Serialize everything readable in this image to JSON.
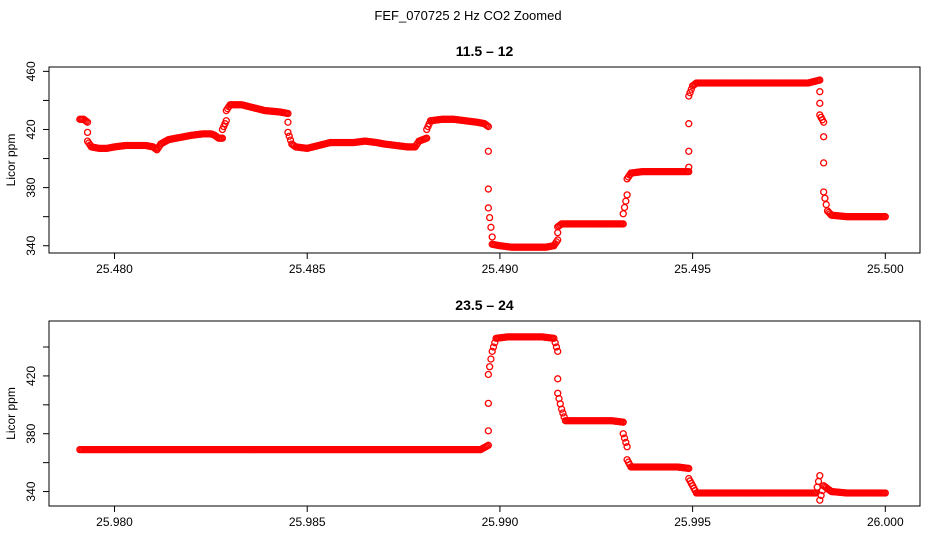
{
  "figure": {
    "suptitle": "FEF_070725  2 Hz CO2 Zoomed"
  },
  "chart_data": [
    {
      "type": "scatter",
      "title": "11.5 – 12",
      "xlabel": "",
      "ylabel": "Licor ppm",
      "xlim": [
        25.4783,
        25.5009
      ],
      "ylim": [
        335,
        463
      ],
      "xticks": [
        25.48,
        25.485,
        25.49,
        25.495,
        25.5
      ],
      "xtick_labels": [
        "25.480",
        "25.485",
        "25.490",
        "25.495",
        "25.500"
      ],
      "yticks": [
        340,
        360,
        380,
        400,
        420,
        440,
        460
      ],
      "ytick_labels": [
        "340",
        "",
        "380",
        "",
        "420",
        "",
        "460"
      ],
      "marker_color": "#ff0000",
      "series": [
        {
          "points": [
            [
              25.4791,
              427
            ],
            [
              25.4792,
              427
            ],
            [
              25.4793,
              425
            ],
            [
              25.4793,
              418
            ],
            [
              25.4793,
              412
            ],
            [
              25.4794,
              408
            ],
            [
              25.4796,
              407
            ],
            [
              25.4798,
              407
            ],
            [
              25.48,
              408
            ],
            [
              25.4803,
              409
            ],
            [
              25.4806,
              409
            ],
            [
              25.4808,
              409
            ],
            [
              25.481,
              408
            ],
            [
              25.4811,
              406
            ],
            [
              25.4812,
              410
            ],
            [
              25.4814,
              413
            ],
            [
              25.4816,
              414
            ],
            [
              25.4818,
              415
            ],
            [
              25.482,
              416
            ],
            [
              25.4823,
              417
            ],
            [
              25.4825,
              417
            ],
            [
              25.4826,
              416
            ],
            [
              25.4827,
              414
            ],
            [
              25.4828,
              414
            ],
            [
              25.4828,
              420
            ],
            [
              25.4829,
              426
            ],
            [
              25.4829,
              433
            ],
            [
              25.483,
              437
            ],
            [
              25.4833,
              437
            ],
            [
              25.4836,
              435
            ],
            [
              25.4839,
              433
            ],
            [
              25.4843,
              432
            ],
            [
              25.4845,
              431
            ],
            [
              25.4845,
              425
            ],
            [
              25.4845,
              418
            ],
            [
              25.4846,
              410
            ],
            [
              25.4847,
              408
            ],
            [
              25.485,
              407
            ],
            [
              25.4853,
              409
            ],
            [
              25.4856,
              411
            ],
            [
              25.4859,
              411
            ],
            [
              25.4862,
              411
            ],
            [
              25.4865,
              412
            ],
            [
              25.4868,
              411
            ],
            [
              25.487,
              410
            ],
            [
              25.4873,
              409
            ],
            [
              25.4876,
              408
            ],
            [
              25.4878,
              408
            ],
            [
              25.4879,
              412
            ],
            [
              25.4881,
              414
            ],
            [
              25.4881,
              420
            ],
            [
              25.4882,
              426
            ],
            [
              25.4885,
              427
            ],
            [
              25.4888,
              427
            ],
            [
              25.4891,
              426
            ],
            [
              25.4894,
              425
            ],
            [
              25.4896,
              424
            ],
            [
              25.4897,
              422
            ],
            [
              25.4897,
              405
            ],
            [
              25.4897,
              379
            ],
            [
              25.4897,
              366
            ],
            [
              25.4898,
              346
            ],
            [
              25.4898,
              341
            ],
            [
              25.49,
              340
            ],
            [
              25.4903,
              339
            ],
            [
              25.4906,
              339
            ],
            [
              25.4909,
              339
            ],
            [
              25.4912,
              339
            ],
            [
              25.4914,
              340
            ],
            [
              25.4915,
              344
            ],
            [
              25.4915,
              349
            ],
            [
              25.4915,
              353
            ],
            [
              25.4916,
              355
            ],
            [
              25.4919,
              355
            ],
            [
              25.4922,
              355
            ],
            [
              25.4925,
              355
            ],
            [
              25.4928,
              355
            ],
            [
              25.4932,
              355
            ],
            [
              25.4932,
              362
            ],
            [
              25.4933,
              375
            ],
            [
              25.4933,
              386
            ],
            [
              25.4934,
              390
            ],
            [
              25.4937,
              391
            ],
            [
              25.494,
              391
            ],
            [
              25.4943,
              391
            ],
            [
              25.4946,
              391
            ],
            [
              25.4949,
              391
            ],
            [
              25.4949,
              394
            ],
            [
              25.4949,
              405
            ],
            [
              25.4949,
              424
            ],
            [
              25.4949,
              443
            ],
            [
              25.495,
              450
            ],
            [
              25.4951,
              452
            ],
            [
              25.4955,
              452
            ],
            [
              25.496,
              452
            ],
            [
              25.4965,
              452
            ],
            [
              25.497,
              452
            ],
            [
              25.4975,
              452
            ],
            [
              25.498,
              452
            ],
            [
              25.4983,
              454
            ],
            [
              25.4983,
              446
            ],
            [
              25.4983,
              438
            ],
            [
              25.4983,
              430
            ],
            [
              25.4984,
              425
            ],
            [
              25.4984,
              415
            ],
            [
              25.4984,
              397
            ],
            [
              25.4984,
              377
            ],
            [
              25.4985,
              364
            ],
            [
              25.4986,
              361
            ],
            [
              25.499,
              360
            ],
            [
              25.4994,
              360
            ],
            [
              25.4997,
              360
            ],
            [
              25.5,
              360
            ]
          ]
        }
      ]
    },
    {
      "type": "scatter",
      "title": "23.5 – 24",
      "xlabel": "",
      "ylabel": "Licor ppm",
      "xlim": [
        25.9783,
        26.0009
      ],
      "ylim": [
        330,
        458
      ],
      "xticks": [
        25.98,
        25.985,
        25.99,
        25.995,
        26.0
      ],
      "xtick_labels": [
        "25.980",
        "25.985",
        "25.990",
        "25.995",
        "26.000"
      ],
      "yticks": [
        340,
        360,
        380,
        400,
        420,
        440
      ],
      "ytick_labels": [
        "340",
        "",
        "380",
        "",
        "420",
        ""
      ],
      "marker_color": "#ff0000",
      "series": [
        {
          "points": [
            [
              25.9791,
              369
            ],
            [
              25.9795,
              369
            ],
            [
              25.98,
              369
            ],
            [
              25.9805,
              369
            ],
            [
              25.981,
              369
            ],
            [
              25.9815,
              369
            ],
            [
              25.982,
              369
            ],
            [
              25.9825,
              369
            ],
            [
              25.983,
              369
            ],
            [
              25.9835,
              369
            ],
            [
              25.984,
              369
            ],
            [
              25.9845,
              369
            ],
            [
              25.985,
              369
            ],
            [
              25.9855,
              369
            ],
            [
              25.986,
              369
            ],
            [
              25.9865,
              369
            ],
            [
              25.987,
              369
            ],
            [
              25.9875,
              369
            ],
            [
              25.988,
              369
            ],
            [
              25.9885,
              369
            ],
            [
              25.989,
              369
            ],
            [
              25.9895,
              369
            ],
            [
              25.9897,
              372
            ],
            [
              25.9897,
              382
            ],
            [
              25.9897,
              401
            ],
            [
              25.9897,
              421
            ],
            [
              25.9898,
              437
            ],
            [
              25.9899,
              446
            ],
            [
              25.9902,
              447
            ],
            [
              25.9905,
              447
            ],
            [
              25.9908,
              447
            ],
            [
              25.9911,
              447
            ],
            [
              25.9914,
              446
            ],
            [
              25.9915,
              437
            ],
            [
              25.9915,
              418
            ],
            [
              25.9915,
              408
            ],
            [
              25.9916,
              397
            ],
            [
              25.9917,
              389
            ],
            [
              25.992,
              389
            ],
            [
              25.9923,
              389
            ],
            [
              25.9926,
              389
            ],
            [
              25.9929,
              389
            ],
            [
              25.9932,
              388
            ],
            [
              25.9932,
              380
            ],
            [
              25.9933,
              371
            ],
            [
              25.9933,
              362
            ],
            [
              25.9934,
              357
            ],
            [
              25.9937,
              357
            ],
            [
              25.994,
              357
            ],
            [
              25.9943,
              357
            ],
            [
              25.9946,
              357
            ],
            [
              25.9949,
              356
            ],
            [
              25.9949,
              349
            ],
            [
              25.995,
              344
            ],
            [
              25.9951,
              339
            ],
            [
              25.9955,
              339
            ],
            [
              25.996,
              339
            ],
            [
              25.9965,
              339
            ],
            [
              25.997,
              339
            ],
            [
              25.9975,
              339
            ],
            [
              25.998,
              339
            ],
            [
              25.9982,
              339
            ],
            [
              25.9983,
              351
            ],
            [
              25.9983,
              334
            ],
            [
              25.9984,
              344
            ],
            [
              25.9986,
              340
            ],
            [
              25.999,
              339
            ],
            [
              25.9994,
              339
            ],
            [
              25.9997,
              339
            ],
            [
              26.0,
              339
            ]
          ]
        }
      ]
    }
  ]
}
